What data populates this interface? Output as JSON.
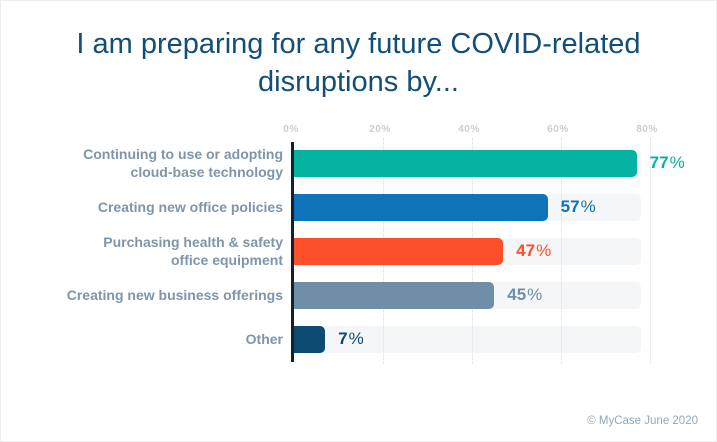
{
  "title": "I am preparing for any future COVID-related disruptions by...",
  "footer": "© MyCase June 2020",
  "palette": {
    "title_text": "#134e78",
    "category_label_text": "#7e95ab",
    "axis_tick_text": "#c9ced4",
    "axis_line": "#14212c",
    "gridline": "#d8dce2",
    "bar_track": "#f4f6f8",
    "footer_text": "#91a8ba"
  },
  "chart_data": {
    "type": "bar",
    "orientation": "horizontal",
    "title": "I am preparing for any future COVID-related disruptions by...",
    "xlabel": "",
    "ylabel": "",
    "categories": [
      "Continuing to use or adopting\ncloud-base technology",
      "Creating new office policies",
      "Purchasing health & safety\noffice equipment",
      "Creating new business offerings",
      "Other"
    ],
    "values": [
      77,
      57,
      47,
      45,
      7
    ],
    "value_labels": [
      "77%",
      "57%",
      "47%",
      "45%",
      "7%"
    ],
    "bar_colors": [
      "#04b3a1",
      "#0e73b9",
      "#fc4f2a",
      "#6f8ea8",
      "#0c4a72"
    ],
    "axis": {
      "ticks": [
        "0%",
        "20%",
        "40%",
        "60%",
        "80%"
      ],
      "tick_values": [
        0,
        20,
        40,
        60,
        80
      ],
      "max": 80
    },
    "grid": "dotted-vertical",
    "legend": "none",
    "source": "© MyCase June 2020"
  }
}
